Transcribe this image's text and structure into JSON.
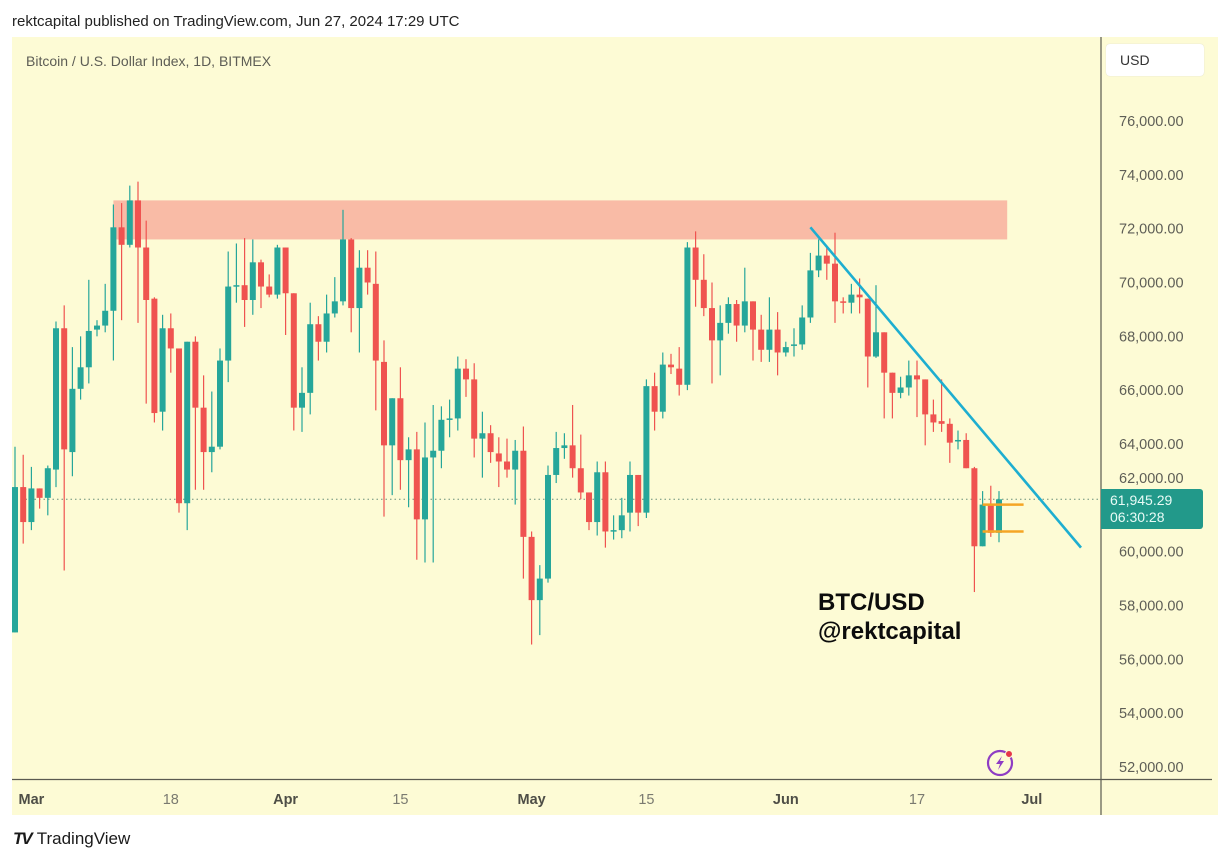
{
  "header": {
    "text": "rektcapital published on TradingView.com, Jun 27, 2024 17:29 UTC"
  },
  "symbol_title": "Bitcoin / U.S. Dollar Index, 1D, BITMEX",
  "currency_button": "USD",
  "last_price": {
    "price": "61,945.29",
    "countdown": "06:30:28"
  },
  "annotation": {
    "line1": "BTC/USD",
    "line2": "@rektcapital"
  },
  "footer": {
    "brand": "TradingView"
  },
  "icons": {
    "alert": "lightning-alert-icon",
    "logo": "tradingview-logo"
  },
  "colors": {
    "background": "#fdfbd5",
    "up": "#26a69a",
    "down": "#ef5350",
    "resistance_zone": "#f9bba6",
    "trendline": "#1eaed0",
    "range_lines": "#f5a524",
    "price_label": "#22998a"
  },
  "chart_data": {
    "type": "candlestick",
    "title": "Bitcoin / U.S. Dollar Index, 1D, BITMEX",
    "ylim": [
      51500,
      77500
    ],
    "y_ticks": [
      "76,000.00",
      "74,000.00",
      "72,000.00",
      "70,000.00",
      "68,000.00",
      "66,000.00",
      "64,000.00",
      "62,000.00",
      "60,000.00",
      "58,000.00",
      "56,000.00",
      "54,000.00",
      "52,000.00"
    ],
    "y_tick_values": [
      76000,
      74000,
      72000,
      70000,
      68000,
      66000,
      64000,
      62000,
      60000,
      58000,
      56000,
      54000,
      52000
    ],
    "x_ticks": [
      {
        "label": "Mar",
        "date": "2024-03-01",
        "major": true
      },
      {
        "label": "18",
        "date": "2024-03-18",
        "major": false
      },
      {
        "label": "Apr",
        "date": "2024-04-01",
        "major": true
      },
      {
        "label": "15",
        "date": "2024-04-15",
        "major": false
      },
      {
        "label": "May",
        "date": "2024-05-01",
        "major": true
      },
      {
        "label": "15",
        "date": "2024-05-15",
        "major": false
      },
      {
        "label": "Jun",
        "date": "2024-06-01",
        "major": true
      },
      {
        "label": "17",
        "date": "2024-06-17",
        "major": false
      },
      {
        "label": "Jul",
        "date": "2024-07-01",
        "major": true
      }
    ],
    "last_price": 61945.29,
    "resistance_zone": {
      "from": "2024-03-11",
      "to": "2024-06-28",
      "low": 71600,
      "high": 73050
    },
    "trendline": {
      "start": [
        "2024-06-04",
        72050
      ],
      "end": [
        "2024-07-07",
        60150
      ]
    },
    "range_lines": [
      {
        "from": "2024-06-25",
        "to": "2024-06-30",
        "price": 61750
      },
      {
        "from": "2024-06-25",
        "to": "2024-06-30",
        "price": 60750
      }
    ],
    "columns": [
      "date",
      "open",
      "high",
      "low",
      "close"
    ],
    "candles": [
      [
        "2024-02-28",
        57000,
        63900,
        57000,
        62400
      ],
      [
        "2024-02-29",
        62400,
        63600,
        60300,
        61100
      ],
      [
        "2024-03-01",
        61100,
        63150,
        60800,
        62350
      ],
      [
        "2024-03-02",
        62350,
        62350,
        61600,
        62000
      ],
      [
        "2024-03-03",
        62000,
        63200,
        61350,
        63100
      ],
      [
        "2024-03-04",
        63050,
        68550,
        62400,
        68300
      ],
      [
        "2024-03-05",
        68300,
        69150,
        59300,
        63800
      ],
      [
        "2024-03-06",
        63700,
        67600,
        62800,
        66050
      ],
      [
        "2024-03-07",
        66050,
        68000,
        65650,
        66850
      ],
      [
        "2024-03-08",
        66850,
        70100,
        66250,
        68200
      ],
      [
        "2024-03-09",
        68250,
        68600,
        68000,
        68400
      ],
      [
        "2024-03-10",
        68400,
        69950,
        68150,
        68950
      ],
      [
        "2024-03-11",
        68950,
        72900,
        67100,
        72050
      ],
      [
        "2024-03-12",
        72050,
        72950,
        68600,
        71400
      ],
      [
        "2024-03-13",
        71400,
        73600,
        71300,
        73050
      ],
      [
        "2024-03-14",
        73050,
        73750,
        68500,
        71300
      ],
      [
        "2024-03-15",
        71300,
        72300,
        65500,
        69350
      ],
      [
        "2024-03-16",
        69400,
        69450,
        64800,
        65150
      ],
      [
        "2024-03-17",
        65200,
        68800,
        64500,
        68300
      ],
      [
        "2024-03-18",
        68300,
        68850,
        66650,
        67550
      ],
      [
        "2024-03-19",
        67550,
        67550,
        61450,
        61800
      ],
      [
        "2024-03-20",
        61800,
        67800,
        60800,
        67800
      ],
      [
        "2024-03-21",
        67800,
        68000,
        62300,
        65350
      ],
      [
        "2024-03-22",
        65350,
        66550,
        62300,
        63700
      ],
      [
        "2024-03-23",
        63700,
        65950,
        62950,
        63900
      ],
      [
        "2024-03-24",
        63900,
        67550,
        63800,
        67100
      ],
      [
        "2024-03-25",
        67100,
        71150,
        66300,
        69850
      ],
      [
        "2024-03-26",
        69850,
        71450,
        69250,
        69900
      ],
      [
        "2024-03-27",
        69900,
        71650,
        68350,
        69350
      ],
      [
        "2024-03-28",
        69350,
        71600,
        68800,
        70750
      ],
      [
        "2024-03-29",
        70750,
        70850,
        69050,
        69850
      ],
      [
        "2024-03-30",
        69850,
        70300,
        69450,
        69550
      ],
      [
        "2024-03-31",
        69550,
        71400,
        69400,
        71300
      ],
      [
        "2024-04-01",
        71300,
        71300,
        68050,
        69600
      ],
      [
        "2024-04-02",
        69600,
        69600,
        64500,
        65350
      ],
      [
        "2024-04-03",
        65350,
        66850,
        64450,
        65900
      ],
      [
        "2024-04-04",
        65900,
        69250,
        65100,
        68450
      ],
      [
        "2024-04-05",
        68450,
        68750,
        67100,
        67800
      ],
      [
        "2024-04-06",
        67800,
        69550,
        67400,
        68850
      ],
      [
        "2024-04-07",
        68850,
        70200,
        68700,
        69300
      ],
      [
        "2024-04-08",
        69300,
        72700,
        69150,
        71600
      ],
      [
        "2024-04-09",
        71600,
        71650,
        68150,
        69050
      ],
      [
        "2024-04-10",
        69050,
        71200,
        67400,
        70550
      ],
      [
        "2024-04-11",
        70550,
        71200,
        69550,
        70000
      ],
      [
        "2024-04-12",
        69950,
        71150,
        65250,
        67100
      ],
      [
        "2024-04-13",
        67050,
        67850,
        61300,
        63950
      ],
      [
        "2024-04-14",
        63950,
        65700,
        62100,
        65700
      ],
      [
        "2024-04-15",
        65700,
        66850,
        62300,
        63400
      ],
      [
        "2024-04-16",
        63400,
        64250,
        61650,
        63800
      ],
      [
        "2024-04-17",
        63800,
        64450,
        59700,
        61200
      ],
      [
        "2024-04-18",
        61200,
        64800,
        59600,
        63500
      ],
      [
        "2024-04-19",
        63500,
        65450,
        59600,
        63750
      ],
      [
        "2024-04-20",
        63750,
        65400,
        63100,
        64900
      ],
      [
        "2024-04-21",
        64900,
        65650,
        64250,
        64950
      ],
      [
        "2024-04-22",
        64950,
        67250,
        64500,
        66800
      ],
      [
        "2024-04-23",
        66800,
        67150,
        65750,
        66400
      ],
      [
        "2024-04-24",
        66400,
        67000,
        63500,
        64200
      ],
      [
        "2024-04-25",
        64200,
        65200,
        62750,
        64400
      ],
      [
        "2024-04-26",
        64400,
        64700,
        63300,
        63700
      ],
      [
        "2024-04-27",
        63650,
        64250,
        62400,
        63350
      ],
      [
        "2024-04-28",
        63350,
        64200,
        62750,
        63050
      ],
      [
        "2024-04-29",
        63050,
        64150,
        61750,
        63750
      ],
      [
        "2024-04-30",
        63750,
        64650,
        59000,
        60550
      ],
      [
        "2024-05-01",
        60550,
        60750,
        56550,
        58200
      ],
      [
        "2024-05-02",
        58200,
        59500,
        56900,
        59000
      ],
      [
        "2024-05-03",
        59000,
        63200,
        58850,
        62850
      ],
      [
        "2024-05-04",
        62850,
        64450,
        62550,
        63850
      ],
      [
        "2024-05-05",
        63850,
        64400,
        63450,
        63950
      ],
      [
        "2024-05-06",
        63950,
        65450,
        62750,
        63100
      ],
      [
        "2024-05-07",
        63100,
        64350,
        61950,
        62200
      ],
      [
        "2024-05-08",
        62200,
        62200,
        60800,
        61100
      ],
      [
        "2024-05-09",
        61100,
        63350,
        60600,
        62950
      ],
      [
        "2024-05-10",
        62950,
        63350,
        60150,
        60750
      ],
      [
        "2024-05-11",
        60750,
        61350,
        60450,
        60800
      ],
      [
        "2024-05-12",
        60800,
        62000,
        60500,
        61350
      ],
      [
        "2024-05-13",
        61450,
        63350,
        60750,
        62850
      ],
      [
        "2024-05-14",
        62850,
        62850,
        60950,
        61450
      ],
      [
        "2024-05-15",
        61450,
        66400,
        61250,
        66150
      ],
      [
        "2024-05-16",
        66150,
        66650,
        64500,
        65200
      ],
      [
        "2024-05-17",
        65200,
        67400,
        64950,
        66950
      ],
      [
        "2024-05-18",
        66950,
        67350,
        66600,
        66850
      ],
      [
        "2024-05-19",
        66800,
        67600,
        65800,
        66200
      ],
      [
        "2024-05-20",
        66200,
        71500,
        66000,
        71300
      ],
      [
        "2024-05-21",
        71300,
        71900,
        69100,
        70100
      ],
      [
        "2024-05-22",
        70100,
        71050,
        68750,
        69050
      ],
      [
        "2024-05-23",
        69050,
        70000,
        66250,
        67850
      ],
      [
        "2024-05-24",
        67850,
        69150,
        66550,
        68500
      ],
      [
        "2024-05-25",
        68500,
        69450,
        68100,
        69200
      ],
      [
        "2024-05-26",
        69200,
        69350,
        67800,
        68400
      ],
      [
        "2024-05-27",
        68400,
        70550,
        68150,
        69300
      ],
      [
        "2024-05-28",
        69300,
        69300,
        67100,
        68250
      ],
      [
        "2024-05-29",
        68250,
        68800,
        67050,
        67500
      ],
      [
        "2024-05-30",
        67500,
        69450,
        67050,
        68250
      ],
      [
        "2024-05-31",
        68250,
        68900,
        66550,
        67400
      ],
      [
        "2024-06-01",
        67400,
        67800,
        67250,
        67600
      ],
      [
        "2024-06-02",
        67650,
        68300,
        67250,
        67700
      ],
      [
        "2024-06-03",
        67700,
        69150,
        67500,
        68700
      ],
      [
        "2024-06-04",
        68700,
        71100,
        68500,
        70450
      ],
      [
        "2024-06-05",
        70450,
        71600,
        70200,
        71000
      ],
      [
        "2024-06-06",
        71000,
        71300,
        70100,
        70700
      ],
      [
        "2024-06-07",
        70700,
        71850,
        68500,
        69300
      ],
      [
        "2024-06-08",
        69300,
        69450,
        68850,
        69250
      ],
      [
        "2024-06-09",
        69250,
        69950,
        68850,
        69550
      ],
      [
        "2024-06-10",
        69550,
        70150,
        68850,
        69450
      ],
      [
        "2024-06-11",
        69400,
        69400,
        66100,
        67250
      ],
      [
        "2024-06-12",
        67250,
        69900,
        67200,
        68150
      ],
      [
        "2024-06-13",
        68150,
        68150,
        64950,
        66650
      ],
      [
        "2024-06-14",
        66650,
        66650,
        64950,
        65900
      ],
      [
        "2024-06-15",
        65900,
        66500,
        65700,
        66100
      ],
      [
        "2024-06-16",
        66100,
        67100,
        65800,
        66550
      ],
      [
        "2024-06-17",
        66550,
        67100,
        65000,
        66400
      ],
      [
        "2024-06-18",
        66400,
        66400,
        63950,
        65100
      ],
      [
        "2024-06-19",
        65100,
        65650,
        64450,
        64800
      ],
      [
        "2024-06-20",
        64850,
        66400,
        64450,
        64750
      ],
      [
        "2024-06-21",
        64750,
        64950,
        63300,
        64050
      ],
      [
        "2024-06-22",
        64100,
        64500,
        63800,
        64150
      ],
      [
        "2024-06-23",
        64150,
        64400,
        63100,
        63100
      ],
      [
        "2024-06-24",
        63100,
        63150,
        58500,
        60200
      ],
      [
        "2024-06-25",
        60200,
        62250,
        60200,
        61750
      ],
      [
        "2024-06-26",
        61750,
        62450,
        60550,
        60700
      ],
      [
        "2024-06-27",
        60700,
        62250,
        60350,
        61945.29
      ]
    ]
  }
}
